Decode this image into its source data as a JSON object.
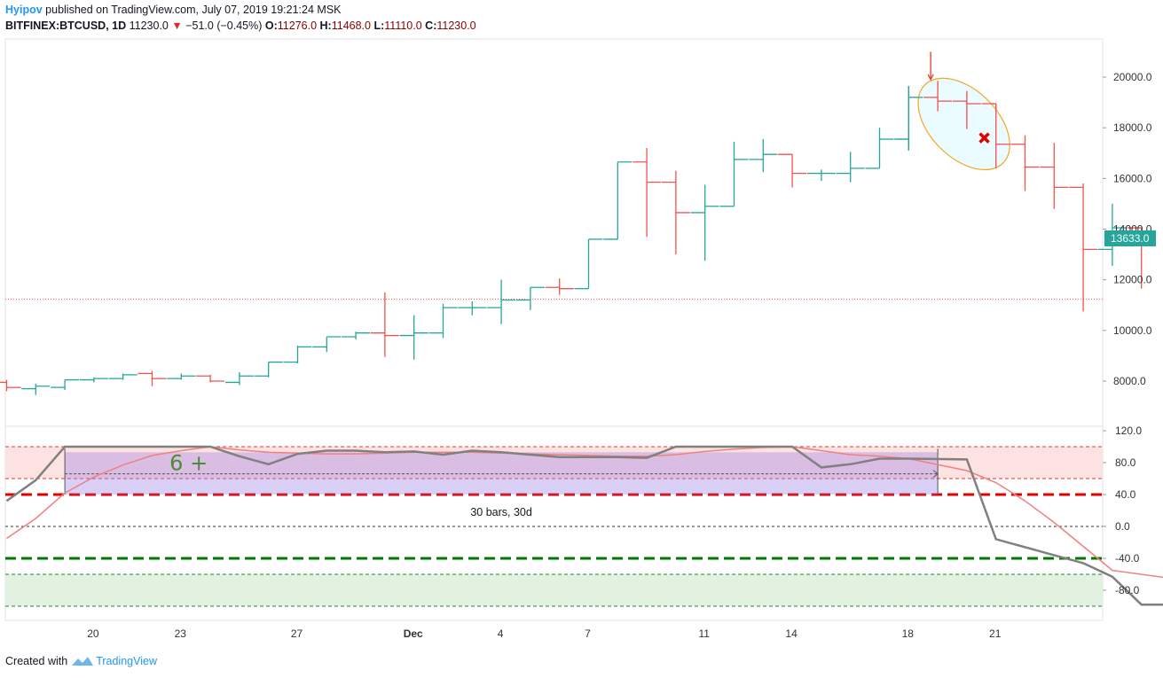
{
  "header": {
    "author": "Hyipov",
    "published": "published on TradingView.com, July 07, 2019 19:21:24 MSK",
    "symbol": "BITFINEX:BTCUSD, 1D",
    "last": "11230.0",
    "arrow": "▼",
    "change": "−51.0 (−0.45%)",
    "o_label": "O:",
    "o": "11276.0",
    "h_label": "H:",
    "h": "11468.0",
    "l_label": "L:",
    "l": "11110.0",
    "c_label": "C:",
    "c": "11230.0"
  },
  "footer": {
    "created_with": "Created with",
    "brand": "TradingView"
  },
  "colors": {
    "up": "#26a69a",
    "down": "#ef5350",
    "price_badge": "#26a69a",
    "oscillator": "#808080",
    "signal": "#f08080",
    "ellipse": "#f5a623",
    "ellipse_fill": "#e6fbff"
  },
  "chart_data": {
    "type": "ohlc",
    "price_axis": {
      "ticks": [
        8000,
        10000,
        12000,
        14000,
        16000,
        18000,
        20000
      ],
      "tick_labels": [
        "8000.0",
        "10000.0",
        "12000.0",
        "14000.0",
        "16000.0",
        "18000.0",
        "20000.0"
      ]
    },
    "current_price_label": "13633.0",
    "current_price": 13633,
    "last_close_line": 11230,
    "x_tick_labels": [
      "20",
      "23",
      "27",
      "Dec",
      "4",
      "7",
      "11",
      "14",
      "18",
      "21"
    ],
    "x_tick_index": [
      3,
      6,
      10,
      14,
      17,
      20,
      24,
      27,
      31,
      34
    ],
    "bars": [
      {
        "o": 7950,
        "h": 8050,
        "l": 7600,
        "c": 7750
      },
      {
        "o": 7700,
        "h": 7900,
        "l": 7450,
        "c": 7800
      },
      {
        "o": 7750,
        "h": 8050,
        "l": 7650,
        "c": 8050
      },
      {
        "o": 8050,
        "h": 8150,
        "l": 7950,
        "c": 8100
      },
      {
        "o": 8100,
        "h": 8300,
        "l": 8050,
        "c": 8250
      },
      {
        "o": 8300,
        "h": 8400,
        "l": 7800,
        "c": 8100
      },
      {
        "o": 8100,
        "h": 8300,
        "l": 8050,
        "c": 8200
      },
      {
        "o": 8200,
        "h": 8250,
        "l": 7950,
        "c": 8000
      },
      {
        "o": 7950,
        "h": 8350,
        "l": 7850,
        "c": 8200
      },
      {
        "o": 8200,
        "h": 8750,
        "l": 8150,
        "c": 8750
      },
      {
        "o": 8750,
        "h": 9400,
        "l": 8700,
        "c": 9350
      },
      {
        "o": 9350,
        "h": 9750,
        "l": 9150,
        "c": 9750
      },
      {
        "o": 9750,
        "h": 9950,
        "l": 9650,
        "c": 9900
      },
      {
        "o": 9900,
        "h": 11500,
        "l": 8950,
        "c": 9800
      },
      {
        "o": 9800,
        "h": 10600,
        "l": 8850,
        "c": 9900
      },
      {
        "o": 9900,
        "h": 11050,
        "l": 9700,
        "c": 10900
      },
      {
        "o": 10900,
        "h": 11150,
        "l": 10600,
        "c": 10900
      },
      {
        "o": 10900,
        "h": 12000,
        "l": 10250,
        "c": 11200
      },
      {
        "o": 11200,
        "h": 11700,
        "l": 10800,
        "c": 11700
      },
      {
        "o": 11700,
        "h": 12050,
        "l": 11400,
        "c": 11650
      },
      {
        "o": 11650,
        "h": 13600,
        "l": 11650,
        "c": 13600
      },
      {
        "o": 13600,
        "h": 16650,
        "l": 13600,
        "c": 16650
      },
      {
        "o": 16650,
        "h": 17200,
        "l": 13700,
        "c": 15850
      },
      {
        "o": 15850,
        "h": 16300,
        "l": 13000,
        "c": 14650
      },
      {
        "o": 14650,
        "h": 15750,
        "l": 12750,
        "c": 14900
      },
      {
        "o": 14900,
        "h": 17450,
        "l": 14900,
        "c": 16750
      },
      {
        "o": 16750,
        "h": 17550,
        "l": 16250,
        "c": 16950
      },
      {
        "o": 16950,
        "h": 16950,
        "l": 15650,
        "c": 16200
      },
      {
        "o": 16200,
        "h": 16350,
        "l": 15900,
        "c": 16200
      },
      {
        "o": 16200,
        "h": 17050,
        "l": 15850,
        "c": 16400
      },
      {
        "o": 16400,
        "h": 18000,
        "l": 16400,
        "c": 17550
      },
      {
        "o": 17550,
        "h": 19650,
        "l": 17100,
        "c": 19200
      },
      {
        "o": 19200,
        "h": 19850,
        "l": 18650,
        "c": 19050
      },
      {
        "o": 19050,
        "h": 19450,
        "l": 17950,
        "c": 18950
      },
      {
        "o": 18950,
        "h": 18950,
        "l": 16400,
        "c": 17350
      },
      {
        "o": 17350,
        "h": 17700,
        "l": 15500,
        "c": 16450
      },
      {
        "o": 16450,
        "h": 17400,
        "l": 14800,
        "c": 15650
      },
      {
        "o": 15650,
        "h": 15800,
        "l": 10750,
        "c": 13200
      },
      {
        "o": 13200,
        "h": 15000,
        "l": 12550,
        "c": 14050
      },
      {
        "o": 14050,
        "h": 14050,
        "l": 11650,
        "c": 13500
      }
    ],
    "annotations": {
      "arrow_bar_index": 32,
      "arrow_from_price": 21000,
      "arrow_to_price": 19900,
      "cross_bar_index": 33.6,
      "cross_price": 17600,
      "ellipse_center_bar": 32.9,
      "ellipse_center_price": 18150,
      "ellipse_rx_bars": 1.9,
      "ellipse_ry_price": 2450,
      "ellipse_rotation_deg": 45
    },
    "oscillator": {
      "axis_ticks": [
        120,
        80,
        40,
        0,
        -40,
        -80
      ],
      "tick_labels": [
        "120.0",
        "80.0",
        "40.0",
        "0.0",
        "-40.0",
        "-80.0"
      ],
      "upper_zone": [
        60,
        100
      ],
      "lower_zone": [
        -100,
        -60
      ],
      "upper_line": 40,
      "lower_line": -40,
      "zero_line": 0,
      "line": [
        32,
        58,
        100,
        100,
        100,
        100,
        100,
        100,
        88,
        78,
        91,
        95,
        95,
        93,
        94,
        90,
        95,
        93,
        90,
        87,
        87,
        87,
        86,
        100,
        100,
        100,
        100,
        100,
        74,
        78,
        85,
        85,
        84,
        -16,
        -36,
        -46,
        -63,
        -98,
        -98
      ],
      "line_x": [
        0,
        1,
        2,
        3,
        4,
        5,
        6,
        7,
        8,
        9,
        10,
        11,
        12,
        13,
        14,
        15,
        16,
        17,
        18,
        19,
        20,
        21,
        22,
        23,
        24,
        25,
        26,
        27,
        28,
        29,
        30,
        31,
        33,
        34,
        36,
        37,
        38,
        39,
        40
      ],
      "signal": [
        -15,
        10,
        42,
        62,
        77,
        89,
        95,
        100,
        96,
        93,
        92,
        91,
        91,
        92,
        93,
        93,
        93,
        92,
        91,
        90,
        89,
        88,
        88,
        90,
        94,
        97,
        99,
        100,
        95,
        90,
        88,
        85,
        70,
        55,
        32,
        5,
        -25,
        -55,
        -65
      ],
      "signal_x": [
        0,
        1,
        2,
        3,
        4,
        5,
        6,
        7,
        8,
        9,
        10,
        11,
        12,
        13,
        14,
        15,
        16,
        17,
        18,
        19,
        20,
        21,
        22,
        23,
        24,
        25,
        26,
        27,
        28,
        29,
        30,
        31,
        33,
        34,
        35,
        36,
        37,
        38,
        40
      ],
      "range_box": {
        "start_index": 2,
        "end_index": 32,
        "top": 93,
        "bottom": 40,
        "mid": 66,
        "label": "30 bars, 30d"
      },
      "hand_label": "6 +"
    }
  }
}
